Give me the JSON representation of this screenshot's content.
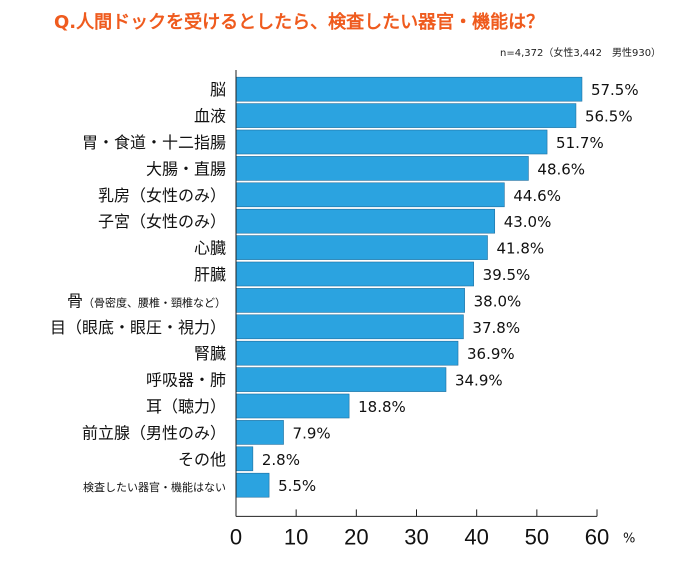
{
  "header": {
    "title": "Q.人間ドックを受けるとしたら、検査したい器官・機能は？",
    "sample": "n=4,372（女性3,442　男性930）"
  },
  "chart_data": {
    "type": "bar",
    "orientation": "horizontal",
    "title": "Q.人間ドックを受けるとしたら、検査したい器官・機能は？",
    "xlim": [
      0,
      60
    ],
    "ticks": [
      0,
      10,
      20,
      30,
      40,
      50,
      60
    ],
    "unit": "%",
    "grid": false,
    "bar_color": "#2ba3e0",
    "categories": [
      "脳",
      "血液",
      "胃・食道・十二指腸",
      "大腸・直腸",
      "乳房（女性のみ）",
      "子宮（女性のみ）",
      "心臓",
      "肝臓",
      "骨（骨密度、腰椎・頸椎など）",
      "目（眼底・眼圧・視力）",
      "腎臓",
      "呼吸器・肺",
      "耳（聴力）",
      "前立腺（男性のみ）",
      "その他",
      "検査したい器官・機能はない"
    ],
    "values": [
      57.5,
      56.5,
      51.7,
      48.6,
      44.6,
      43.0,
      41.8,
      39.5,
      38.0,
      37.8,
      36.9,
      34.9,
      18.8,
      7.9,
      2.8,
      5.5
    ],
    "value_labels": [
      "57.5%",
      "56.5%",
      "51.7%",
      "48.6%",
      "44.6%",
      "43.0%",
      "41.8%",
      "39.5%",
      "38.0%",
      "37.8%",
      "36.9%",
      "34.9%",
      "18.8%",
      "7.9%",
      "2.8%",
      "5.5%"
    ]
  }
}
